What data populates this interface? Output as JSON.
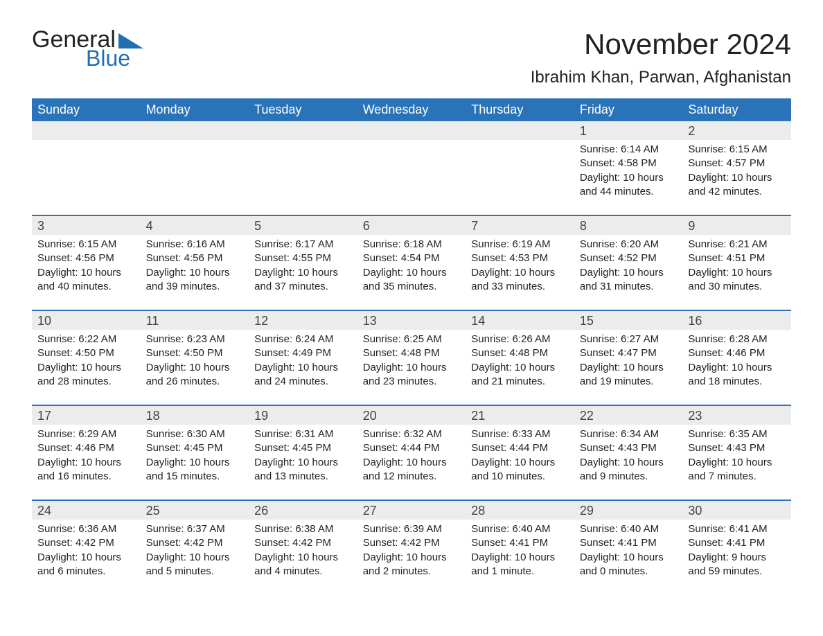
{
  "logo": {
    "general": "General",
    "blue": "Blue"
  },
  "title": "November 2024",
  "location": "Ibrahim Khan, Parwan, Afghanistan",
  "colors": {
    "brand": "#2a73b8",
    "header_bg": "#2a73b8",
    "header_text": "#ffffff",
    "daynum_bg": "#ececec",
    "text": "#222222",
    "logo_blue": "#1f6fb2"
  },
  "day_names": [
    "Sunday",
    "Monday",
    "Tuesday",
    "Wednesday",
    "Thursday",
    "Friday",
    "Saturday"
  ],
  "weeks": [
    [
      null,
      null,
      null,
      null,
      null,
      {
        "n": "1",
        "sr": "Sunrise: 6:14 AM",
        "ss": "Sunset: 4:58 PM",
        "dl": "Daylight: 10 hours and 44 minutes."
      },
      {
        "n": "2",
        "sr": "Sunrise: 6:15 AM",
        "ss": "Sunset: 4:57 PM",
        "dl": "Daylight: 10 hours and 42 minutes."
      }
    ],
    [
      {
        "n": "3",
        "sr": "Sunrise: 6:15 AM",
        "ss": "Sunset: 4:56 PM",
        "dl": "Daylight: 10 hours and 40 minutes."
      },
      {
        "n": "4",
        "sr": "Sunrise: 6:16 AM",
        "ss": "Sunset: 4:56 PM",
        "dl": "Daylight: 10 hours and 39 minutes."
      },
      {
        "n": "5",
        "sr": "Sunrise: 6:17 AM",
        "ss": "Sunset: 4:55 PM",
        "dl": "Daylight: 10 hours and 37 minutes."
      },
      {
        "n": "6",
        "sr": "Sunrise: 6:18 AM",
        "ss": "Sunset: 4:54 PM",
        "dl": "Daylight: 10 hours and 35 minutes."
      },
      {
        "n": "7",
        "sr": "Sunrise: 6:19 AM",
        "ss": "Sunset: 4:53 PM",
        "dl": "Daylight: 10 hours and 33 minutes."
      },
      {
        "n": "8",
        "sr": "Sunrise: 6:20 AM",
        "ss": "Sunset: 4:52 PM",
        "dl": "Daylight: 10 hours and 31 minutes."
      },
      {
        "n": "9",
        "sr": "Sunrise: 6:21 AM",
        "ss": "Sunset: 4:51 PM",
        "dl": "Daylight: 10 hours and 30 minutes."
      }
    ],
    [
      {
        "n": "10",
        "sr": "Sunrise: 6:22 AM",
        "ss": "Sunset: 4:50 PM",
        "dl": "Daylight: 10 hours and 28 minutes."
      },
      {
        "n": "11",
        "sr": "Sunrise: 6:23 AM",
        "ss": "Sunset: 4:50 PM",
        "dl": "Daylight: 10 hours and 26 minutes."
      },
      {
        "n": "12",
        "sr": "Sunrise: 6:24 AM",
        "ss": "Sunset: 4:49 PM",
        "dl": "Daylight: 10 hours and 24 minutes."
      },
      {
        "n": "13",
        "sr": "Sunrise: 6:25 AM",
        "ss": "Sunset: 4:48 PM",
        "dl": "Daylight: 10 hours and 23 minutes."
      },
      {
        "n": "14",
        "sr": "Sunrise: 6:26 AM",
        "ss": "Sunset: 4:48 PM",
        "dl": "Daylight: 10 hours and 21 minutes."
      },
      {
        "n": "15",
        "sr": "Sunrise: 6:27 AM",
        "ss": "Sunset: 4:47 PM",
        "dl": "Daylight: 10 hours and 19 minutes."
      },
      {
        "n": "16",
        "sr": "Sunrise: 6:28 AM",
        "ss": "Sunset: 4:46 PM",
        "dl": "Daylight: 10 hours and 18 minutes."
      }
    ],
    [
      {
        "n": "17",
        "sr": "Sunrise: 6:29 AM",
        "ss": "Sunset: 4:46 PM",
        "dl": "Daylight: 10 hours and 16 minutes."
      },
      {
        "n": "18",
        "sr": "Sunrise: 6:30 AM",
        "ss": "Sunset: 4:45 PM",
        "dl": "Daylight: 10 hours and 15 minutes."
      },
      {
        "n": "19",
        "sr": "Sunrise: 6:31 AM",
        "ss": "Sunset: 4:45 PM",
        "dl": "Daylight: 10 hours and 13 minutes."
      },
      {
        "n": "20",
        "sr": "Sunrise: 6:32 AM",
        "ss": "Sunset: 4:44 PM",
        "dl": "Daylight: 10 hours and 12 minutes."
      },
      {
        "n": "21",
        "sr": "Sunrise: 6:33 AM",
        "ss": "Sunset: 4:44 PM",
        "dl": "Daylight: 10 hours and 10 minutes."
      },
      {
        "n": "22",
        "sr": "Sunrise: 6:34 AM",
        "ss": "Sunset: 4:43 PM",
        "dl": "Daylight: 10 hours and 9 minutes."
      },
      {
        "n": "23",
        "sr": "Sunrise: 6:35 AM",
        "ss": "Sunset: 4:43 PM",
        "dl": "Daylight: 10 hours and 7 minutes."
      }
    ],
    [
      {
        "n": "24",
        "sr": "Sunrise: 6:36 AM",
        "ss": "Sunset: 4:42 PM",
        "dl": "Daylight: 10 hours and 6 minutes."
      },
      {
        "n": "25",
        "sr": "Sunrise: 6:37 AM",
        "ss": "Sunset: 4:42 PM",
        "dl": "Daylight: 10 hours and 5 minutes."
      },
      {
        "n": "26",
        "sr": "Sunrise: 6:38 AM",
        "ss": "Sunset: 4:42 PM",
        "dl": "Daylight: 10 hours and 4 minutes."
      },
      {
        "n": "27",
        "sr": "Sunrise: 6:39 AM",
        "ss": "Sunset: 4:42 PM",
        "dl": "Daylight: 10 hours and 2 minutes."
      },
      {
        "n": "28",
        "sr": "Sunrise: 6:40 AM",
        "ss": "Sunset: 4:41 PM",
        "dl": "Daylight: 10 hours and 1 minute."
      },
      {
        "n": "29",
        "sr": "Sunrise: 6:40 AM",
        "ss": "Sunset: 4:41 PM",
        "dl": "Daylight: 10 hours and 0 minutes."
      },
      {
        "n": "30",
        "sr": "Sunrise: 6:41 AM",
        "ss": "Sunset: 4:41 PM",
        "dl": "Daylight: 9 hours and 59 minutes."
      }
    ]
  ]
}
